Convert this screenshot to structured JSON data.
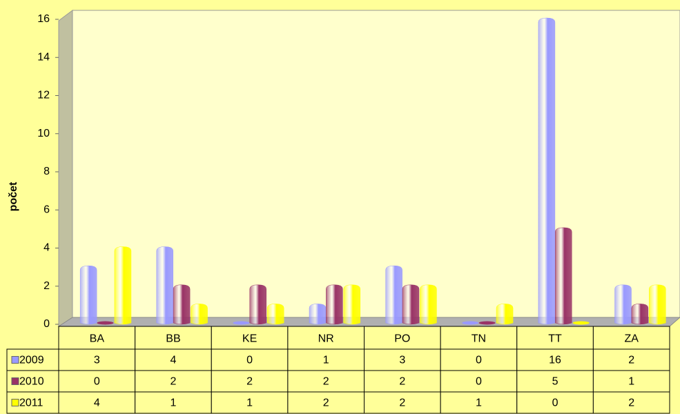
{
  "chart_data": {
    "type": "bar",
    "y_label": "počet",
    "categories": [
      "BA",
      "BB",
      "KE",
      "NR",
      "PO",
      "TN",
      "TT",
      "ZA"
    ],
    "series": [
      {
        "name": "2009",
        "color": "#9999ff",
        "values": [
          3,
          4,
          0,
          1,
          3,
          0,
          16,
          2
        ]
      },
      {
        "name": "2010",
        "color": "#993366",
        "values": [
          0,
          2,
          2,
          2,
          2,
          0,
          5,
          1
        ]
      },
      {
        "name": "2011",
        "color": "#ffff00",
        "values": [
          4,
          1,
          1,
          2,
          2,
          1,
          0,
          2
        ]
      }
    ],
    "ylim": [
      0,
      16
    ],
    "yticks": [
      0,
      2,
      4,
      6,
      8,
      10,
      12,
      14,
      16
    ],
    "grid": false
  }
}
